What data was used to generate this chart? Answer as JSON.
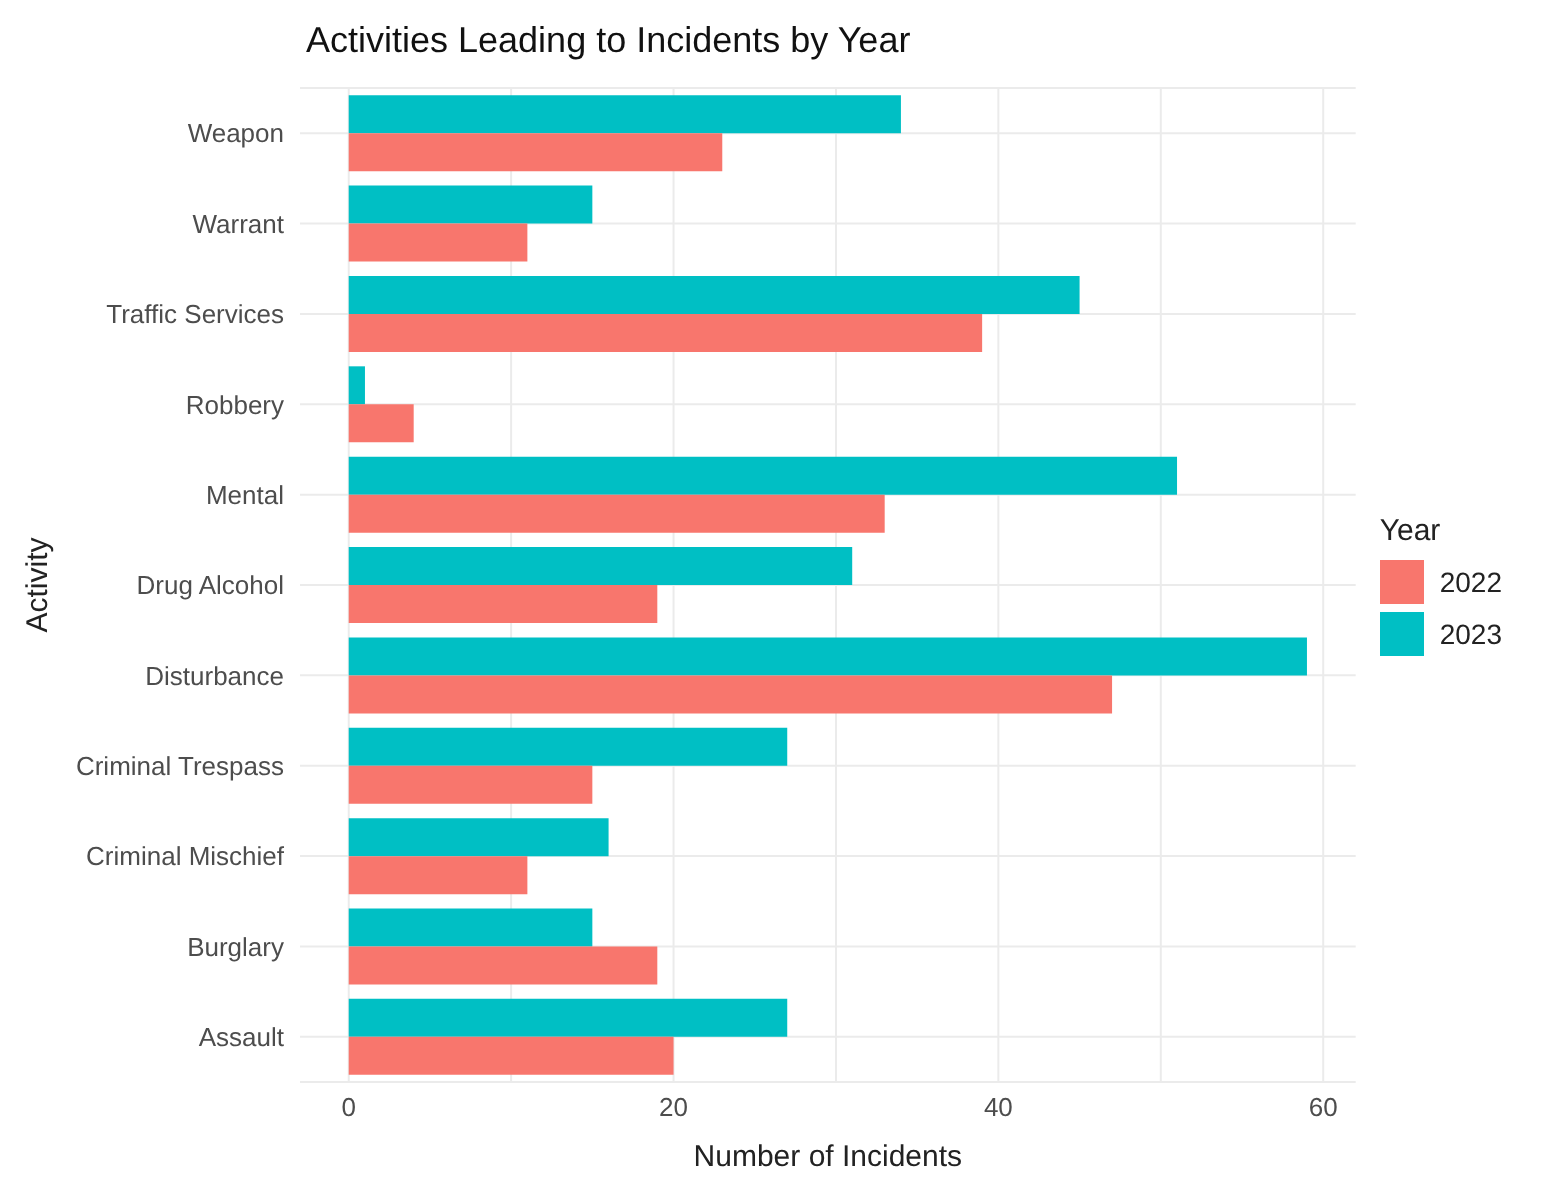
{
  "chart_data": {
    "type": "bar",
    "orientation": "horizontal",
    "title": "Activities Leading to Incidents by Year",
    "xlabel": "Number of Incidents",
    "ylabel": "Activity",
    "legend_title": "Year",
    "legend": "right",
    "categories": [
      "Weapon",
      "Warrant",
      "Traffic Services",
      "Robbery",
      "Mental",
      "Drug Alcohol",
      "Disturbance",
      "Criminal Trespass",
      "Criminal Mischief",
      "Burglary",
      "Assault"
    ],
    "series": [
      {
        "name": "2022",
        "color": "#f8766d",
        "values": [
          23,
          11,
          39,
          4,
          33,
          19,
          47,
          15,
          11,
          19,
          20
        ]
      },
      {
        "name": "2023",
        "color": "#00bfc4",
        "values": [
          34,
          15,
          45,
          1,
          51,
          31,
          59,
          27,
          16,
          15,
          27
        ]
      }
    ],
    "xlim": [
      -3,
      62
    ],
    "xticks": [
      0,
      20,
      40,
      60
    ],
    "grid": true
  }
}
